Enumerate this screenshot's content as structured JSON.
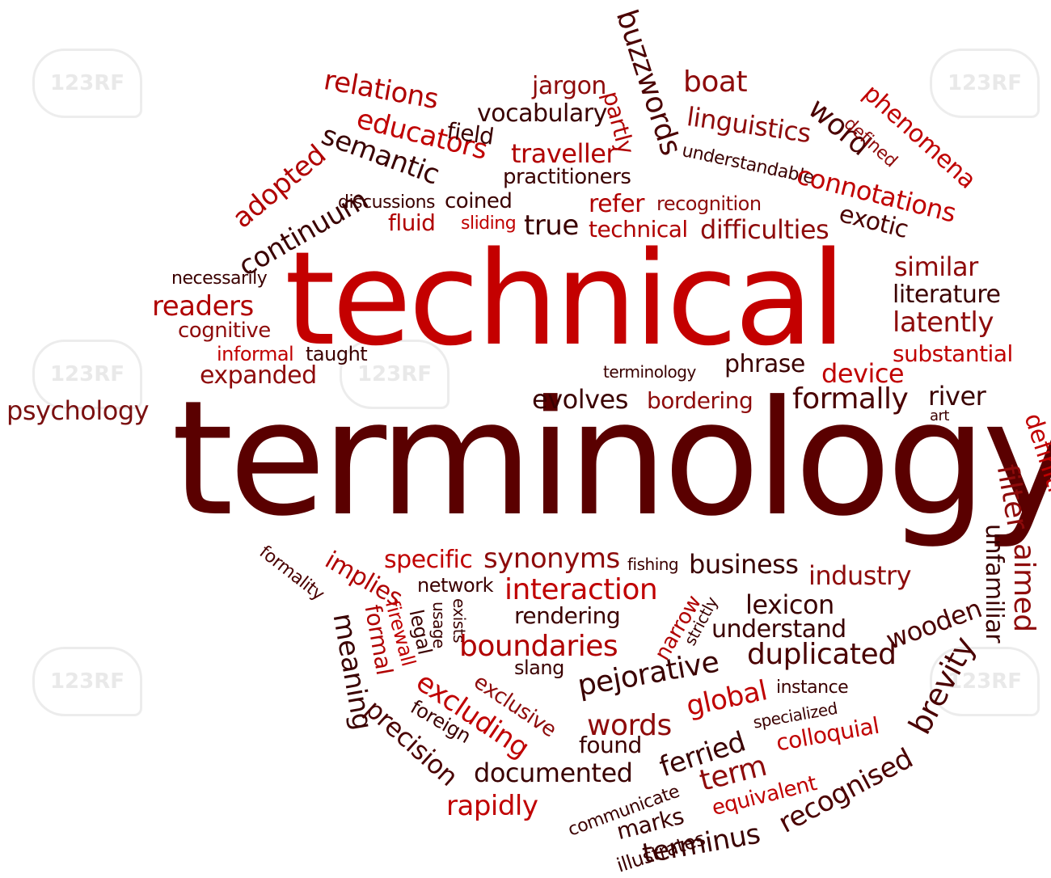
{
  "palette": {
    "red": "#c80000",
    "mid": "#8e0b0b",
    "dark": "#4a0000",
    "wine": "#7a1010"
  },
  "watermark_text": "123RF",
  "words": {
    "technical_big": "technical",
    "terminology_big": "terminology",
    "buzzwords": "buzzwords",
    "relations": "relations",
    "jargon": "jargon",
    "partly": "partly",
    "boat": "boat",
    "phenomena": "phenomena",
    "vocabulary": "vocabulary",
    "educators": "educators",
    "field": "field",
    "linguistics": "linguistics",
    "word": "word",
    "defined": "defined",
    "semantic": "semantic",
    "traveller": "traveller",
    "understandable": "understandable",
    "adopted": "adopted",
    "practitioners": "practitioners",
    "connotations": "connotations",
    "continuum": "continuum",
    "discussions": "discussions",
    "coined": "coined",
    "refer": "refer",
    "recognition": "recognition",
    "exotic": "exotic",
    "fluid": "fluid",
    "sliding": "sliding",
    "true": "true",
    "technical_small": "technical",
    "difficulties": "difficulties",
    "necessarily": "necessarily",
    "similar": "similar",
    "literature": "literature",
    "readers": "readers",
    "latently": "latently",
    "cognitive": "cognitive",
    "informal": "informal",
    "taught": "taught",
    "substantial": "substantial",
    "phrase": "phrase",
    "terminology_small": "terminology",
    "device": "device",
    "expanded": "expanded",
    "psychology": "psychology",
    "evolves": "evolves",
    "bordering": "bordering",
    "formally": "formally",
    "river": "river",
    "art": "art",
    "definition": "definition",
    "filter": "filter",
    "aimed": "aimed",
    "unfamiliar": "unfamiliar",
    "formality": "formality",
    "implies": "implies",
    "specific": "specific",
    "synonyms": "synonyms",
    "fishing": "fishing",
    "business": "business",
    "industry": "industry",
    "network": "network",
    "interaction": "interaction",
    "usage": "usage",
    "exists": "exists",
    "narrow": "narrow",
    "strictly": "strictly",
    "lexicon": "lexicon",
    "wooden": "wooden",
    "meaning": "meaning",
    "formal": "formal",
    "firewall": "firewall",
    "legal": "legal",
    "rendering": "rendering",
    "understand": "understand",
    "brevity": "brevity",
    "boundaries": "boundaries",
    "duplicated": "duplicated",
    "slang": "slang",
    "pejorative": "pejorative",
    "excluding": "excluding",
    "exclusive": "exclusive",
    "global": "global",
    "instance": "instance",
    "foreign": "foreign",
    "precision": "precision",
    "words": "words",
    "specialized": "specialized",
    "ferried": "ferried",
    "found": "found",
    "colloquial": "colloquial",
    "documented": "documented",
    "term": "term",
    "communicate": "communicate",
    "equivalent": "equivalent",
    "recognised": "recognised",
    "rapidly": "rapidly",
    "marks": "marks",
    "illustrates": "illustrates",
    "terminus": "terminus"
  }
}
